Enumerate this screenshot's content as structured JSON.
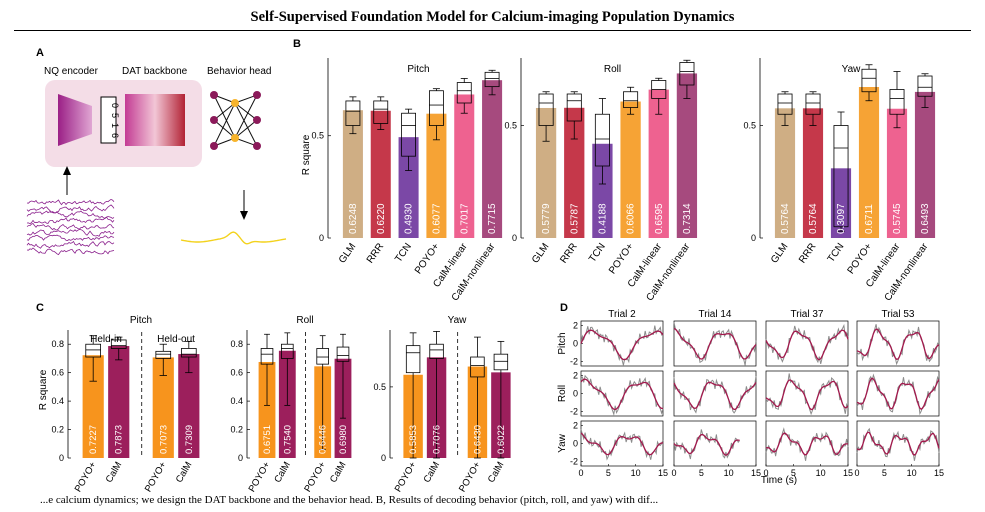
{
  "title": "Self-Supervised Foundation Model for Calcium-imaging Population Dynamics",
  "caption": "...e calcium dynamics; we design the DAT backbone and the behavior head. B, Results of decoding behavior (pitch, roll, and yaw) with dif...",
  "colors": {
    "GLM": "#cfae84",
    "RRR": "#c5384a",
    "TCN": "#7b48a6",
    "POYO+": "#f6a335",
    "CalM-linear": "#ee6290",
    "CalM-nonlinear": "#a64a7e",
    "cmp_poyo": "#f7941d",
    "cmp_calm": "#9c1f5c",
    "trace_gray": "#8c8c8c",
    "trace_pred": "#a3194d"
  },
  "panel_a": {
    "label": "A",
    "encoder_label": "NQ encoder",
    "backbone_label": "DAT backbone",
    "head_label": "Behavior head",
    "token_digits": [
      "0",
      "5",
      "1",
      "6"
    ]
  },
  "panel_b": {
    "label": "B",
    "ylabel": "R square",
    "models": [
      "GLM",
      "RRR",
      "TCN",
      "POYO+",
      "CalM-linear",
      "CalM-nonlinear"
    ]
  },
  "panel_c": {
    "label": "C",
    "ylabel": "R square",
    "held_in_label": "Held-in",
    "held_out_label": "Held-out",
    "models": [
      "POYO+",
      "CalM"
    ]
  },
  "panel_d": {
    "label": "D",
    "trials": [
      "Trial 2",
      "Trial 14",
      "Trial 37",
      "Trial 53"
    ],
    "rows": [
      "Pitch",
      "Roll",
      "Yaw"
    ],
    "xlabel": "Time (s)",
    "xticks": [
      "0",
      "5",
      "10",
      "15"
    ],
    "yticks": [
      "2",
      "0",
      "-2"
    ]
  },
  "chart_data": [
    {
      "type": "bar",
      "panel": "B",
      "title": "Pitch",
      "ylabel": "R square",
      "categories": [
        "GLM",
        "RRR",
        "TCN",
        "POYO+",
        "CalM-linear",
        "CalM-nonlinear"
      ],
      "values": [
        0.6248,
        0.622,
        0.493,
        0.6077,
        0.7017,
        0.7715
      ],
      "value_labels": [
        "0.6248",
        "0.6220",
        "0.4930",
        "0.6077",
        "0.7017",
        "0.7715"
      ],
      "box": [
        [
          0.55,
          0.62,
          0.67,
          0.51,
          0.69
        ],
        [
          0.56,
          0.63,
          0.67,
          0.53,
          0.69
        ],
        [
          0.4,
          0.55,
          0.61,
          0.33,
          0.63
        ],
        [
          0.55,
          0.65,
          0.72,
          0.48,
          0.73
        ],
        [
          0.66,
          0.72,
          0.76,
          0.61,
          0.78
        ],
        [
          0.74,
          0.78,
          0.81,
          0.7,
          0.82
        ]
      ],
      "ylim": [
        0,
        0.88
      ],
      "yticks": [
        "0",
        "0.5",
        "1"
      ],
      "ytick_values": [
        0,
        0.5,
        1.0
      ]
    },
    {
      "type": "bar",
      "panel": "B",
      "title": "Roll",
      "ylabel": "",
      "categories": [
        "GLM",
        "RRR",
        "TCN",
        "POYO+",
        "CalM-linear",
        "CalM-nonlinear"
      ],
      "values": [
        0.5779,
        0.5787,
        0.4188,
        0.6066,
        0.6595,
        0.7314
      ],
      "value_labels": [
        "0.5779",
        "0.5787",
        "0.4188",
        "0.6066",
        "0.6595",
        "0.7314"
      ],
      "box": [
        [
          0.5,
          0.6,
          0.64,
          0.43,
          0.65
        ],
        [
          0.52,
          0.61,
          0.64,
          0.44,
          0.65
        ],
        [
          0.32,
          0.44,
          0.55,
          0.24,
          0.62
        ],
        [
          0.58,
          0.61,
          0.65,
          0.55,
          0.67
        ],
        [
          0.62,
          0.66,
          0.7,
          0.55,
          0.71
        ],
        [
          0.68,
          0.74,
          0.78,
          0.62,
          0.79
        ]
      ],
      "ylim": [
        0,
        0.8
      ],
      "yticks": [
        "0",
        "0.5"
      ],
      "ytick_values": [
        0,
        0.5
      ]
    },
    {
      "type": "bar",
      "panel": "B",
      "title": "Yaw",
      "ylabel": "",
      "categories": [
        "GLM",
        "RRR",
        "TCN",
        "POYO+",
        "CalM-linear",
        "CalM-nonlinear"
      ],
      "values": [
        0.5764,
        0.5764,
        0.3097,
        0.6711,
        0.5745,
        0.6493
      ],
      "value_labels": [
        "0.5764",
        "0.5764",
        "0.3097",
        "0.6711",
        "0.5745",
        "0.6493"
      ],
      "box": [
        [
          0.55,
          0.6,
          0.64,
          0.5,
          0.65
        ],
        [
          0.55,
          0.6,
          0.64,
          0.5,
          0.65
        ],
        [
          0.05,
          0.4,
          0.5,
          0.03,
          0.56
        ],
        [
          0.65,
          0.71,
          0.75,
          0.61,
          0.77
        ],
        [
          0.55,
          0.62,
          0.66,
          0.49,
          0.74
        ],
        [
          0.63,
          0.67,
          0.72,
          0.58,
          0.73
        ]
      ],
      "ylim": [
        0,
        0.8
      ],
      "yticks": [
        "0",
        "0.5"
      ],
      "ytick_values": [
        0,
        0.5
      ]
    },
    {
      "type": "bar",
      "panel": "C",
      "title": "Pitch",
      "ylabel": "R square",
      "groups": [
        "Held-in",
        "Held-out"
      ],
      "categories": [
        "POYO+",
        "CalM",
        "POYO+",
        "CalM"
      ],
      "values": [
        0.7227,
        0.7873,
        0.7073,
        0.7309
      ],
      "value_labels": [
        "0.7227",
        "0.7873",
        "0.7073",
        "0.7309"
      ],
      "box": [
        [
          0.71,
          0.76,
          0.8,
          0.54,
          0.86
        ],
        [
          0.77,
          0.79,
          0.83,
          0.69,
          0.85
        ],
        [
          0.7,
          0.73,
          0.75,
          0.58,
          0.8
        ],
        [
          0.71,
          0.73,
          0.77,
          0.6,
          0.82
        ]
      ],
      "ylim": [
        0,
        0.9
      ],
      "yticks": [
        "0",
        "0.2",
        "0.4",
        "0.6",
        "0.8"
      ],
      "ytick_values": [
        0,
        0.2,
        0.4,
        0.6,
        0.8
      ]
    },
    {
      "type": "bar",
      "panel": "C",
      "title": "Roll",
      "ylabel": "",
      "groups": [
        "Held-in",
        "Held-out"
      ],
      "categories": [
        "POYO+",
        "CalM",
        "POYO+",
        "CalM"
      ],
      "values": [
        0.6751,
        0.754,
        0.6446,
        0.698
      ],
      "value_labels": [
        "0.6751",
        "0.7540",
        "0.6446",
        "0.6980"
      ],
      "box": [
        [
          0.66,
          0.73,
          0.77,
          0.37,
          0.87
        ],
        [
          0.7,
          0.77,
          0.8,
          0.37,
          0.88
        ],
        [
          0.66,
          0.71,
          0.77,
          0.06,
          0.86
        ],
        [
          0.68,
          0.72,
          0.78,
          0.28,
          0.87
        ]
      ],
      "ylim": [
        0,
        0.9
      ],
      "yticks": [
        "0",
        "0.2",
        "0.4",
        "0.6",
        "0.8"
      ],
      "ytick_values": [
        0,
        0.2,
        0.4,
        0.6,
        0.8
      ]
    },
    {
      "type": "bar",
      "panel": "C",
      "title": "Yaw",
      "ylabel": "",
      "groups": [
        "Held-in",
        "Held-out"
      ],
      "categories": [
        "POYO+",
        "CalM",
        "POYO+",
        "CalM"
      ],
      "values": [
        0.5853,
        0.7076,
        0.643,
        0.6022
      ],
      "value_labels": [
        "0.5853",
        "0.7076",
        "0.6430",
        "0.6022"
      ],
      "box": [
        [
          0.6,
          0.74,
          0.79,
          0.0,
          0.88
        ],
        [
          0.7,
          0.76,
          0.8,
          0.0,
          0.89
        ],
        [
          0.57,
          0.65,
          0.71,
          0.0,
          0.85
        ],
        [
          0.62,
          0.68,
          0.73,
          0.0,
          0.82
        ]
      ],
      "ylim": [
        0,
        0.9
      ],
      "yticks": [
        "0",
        "0.5"
      ],
      "ytick_values": [
        0,
        0.5
      ]
    }
  ]
}
